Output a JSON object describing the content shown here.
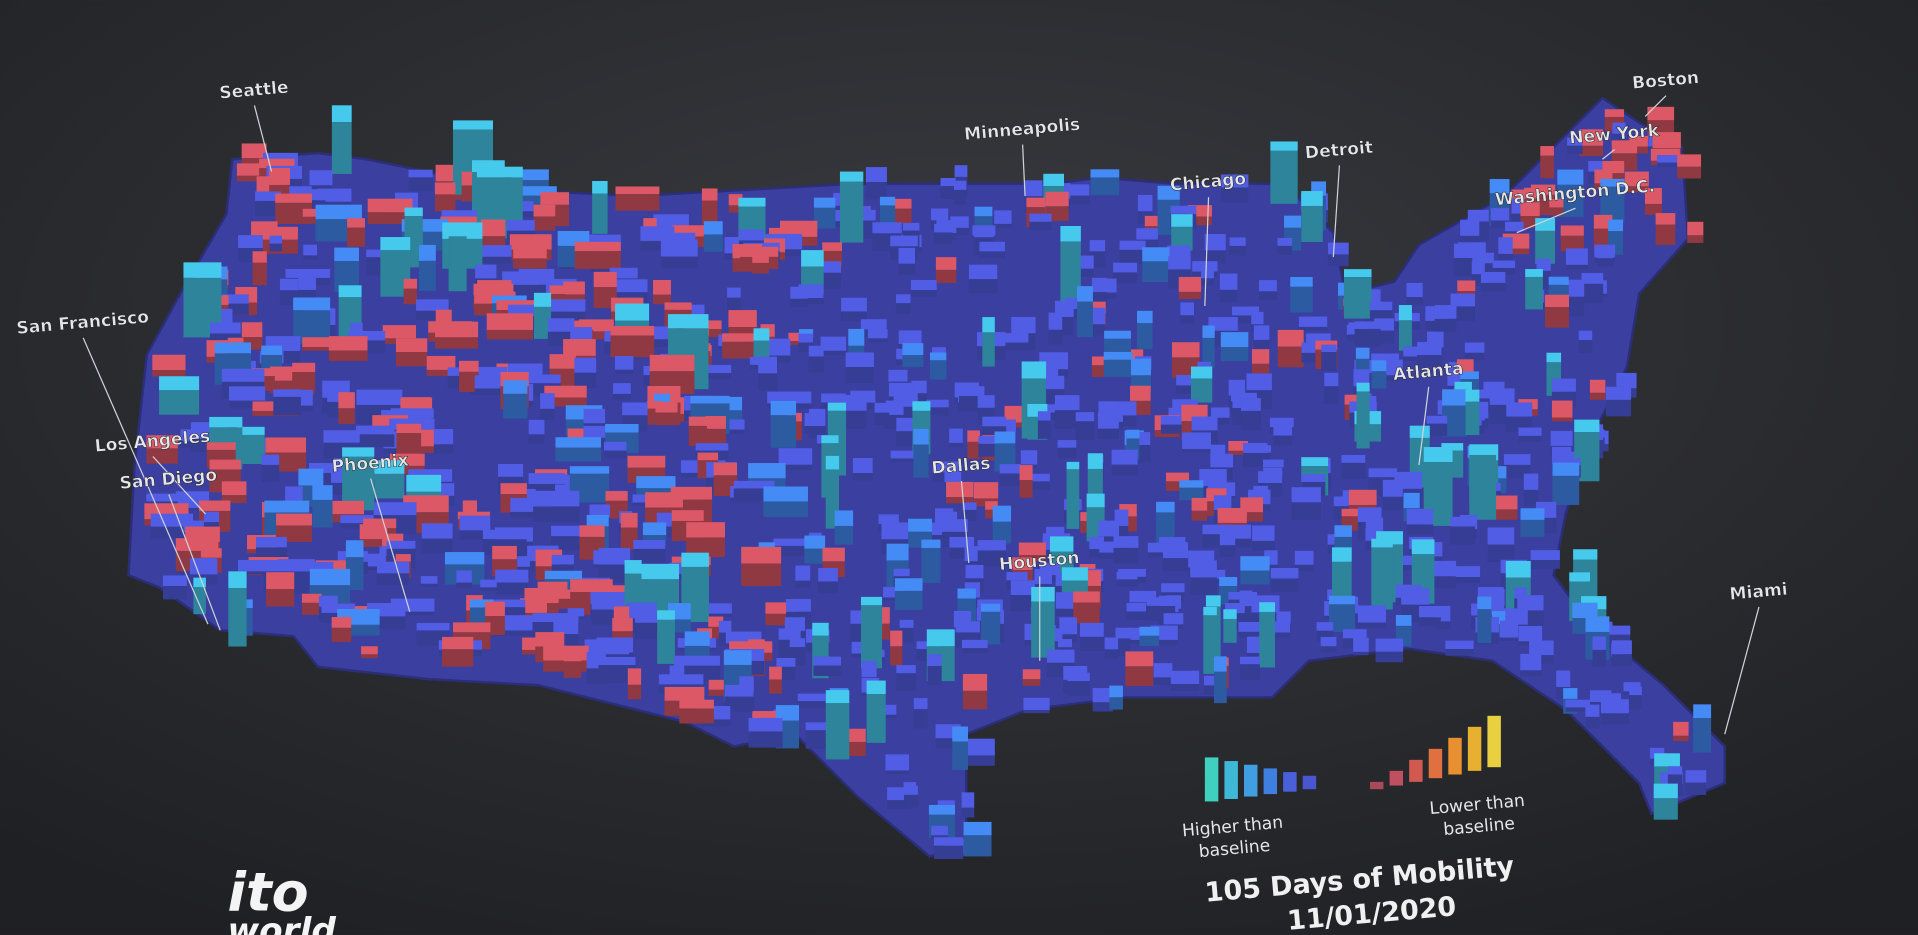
{
  "logo": {
    "line1": "ito",
    "line2": "world"
  },
  "title": "105 Days of Mobility",
  "date": "11/01/2020",
  "legend": {
    "higher": "Higher than baseline",
    "lower": "Lower than baseline"
  },
  "cities": [
    {
      "label": "Seattle"
    },
    {
      "label": "Minneapolis"
    },
    {
      "label": "Chicago"
    },
    {
      "label": "Detroit"
    },
    {
      "label": "Boston"
    },
    {
      "label": "New York"
    },
    {
      "label": "Washington D.C."
    },
    {
      "label": "San Francisco"
    },
    {
      "label": "Los Angeles"
    },
    {
      "label": "San Diego"
    },
    {
      "label": "Phoenix"
    },
    {
      "label": "Dallas"
    },
    {
      "label": "Houston"
    },
    {
      "label": "Atlanta"
    },
    {
      "label": "Miami"
    }
  ]
}
